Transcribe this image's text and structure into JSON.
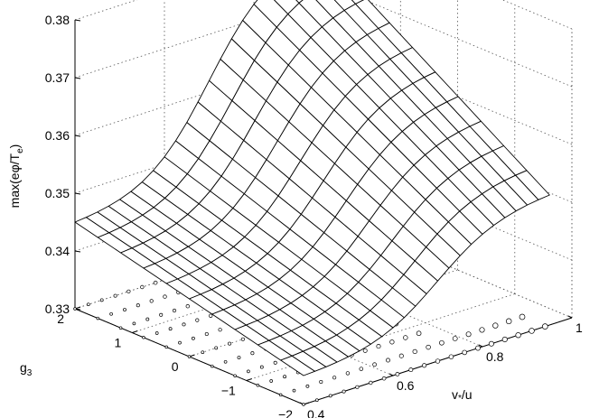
{
  "chart_data": {
    "type": "surface3d",
    "title": "",
    "xlabel": "v*/u",
    "ylabel": "g3",
    "zlabel": "max(eφ/Te)",
    "xlim": [
      0.4,
      1.0
    ],
    "ylim": [
      -2,
      2
    ],
    "zlim": [
      0.33,
      0.38
    ],
    "x_ticks": [
      "0.4",
      "0.6",
      "0.8",
      "1"
    ],
    "y_ticks": [
      "−2",
      "−1",
      "0",
      "1",
      "2"
    ],
    "z_ticks": [
      "0.33",
      "0.34",
      "0.35",
      "0.36",
      "0.37",
      "0.38"
    ],
    "x_tick_values": [
      0.4,
      0.6,
      0.8,
      1.0
    ],
    "y_tick_values": [
      -2,
      -1,
      0,
      1,
      2
    ],
    "z_tick_values": [
      0.33,
      0.34,
      0.35,
      0.36,
      0.37,
      0.38
    ],
    "grid": true,
    "surface_x_range": [
      0.4,
      0.95
    ],
    "surface_y_range": [
      -2,
      2
    ],
    "surface_nx": 23,
    "surface_ny": 11,
    "surface_corner_values": {
      "x0.4_y2": 0.345,
      "x0.4_y-2": 0.335,
      "x0.95_y2": 0.3785,
      "x0.95_y-2": 0.3525
    },
    "marker_columns_x": [
      0.4,
      0.43,
      0.46,
      0.49,
      0.52,
      0.55,
      0.58,
      0.61,
      0.64,
      0.67,
      0.7,
      0.73,
      0.76,
      0.79,
      0.82,
      0.85,
      0.88,
      0.91,
      0.94
    ],
    "marker_rows_y": [
      -2,
      -1.6,
      -1.2,
      -0.8,
      -0.4,
      0,
      0.4,
      0.8,
      1.2,
      1.6,
      2
    ],
    "marker_z": 0.33
  }
}
